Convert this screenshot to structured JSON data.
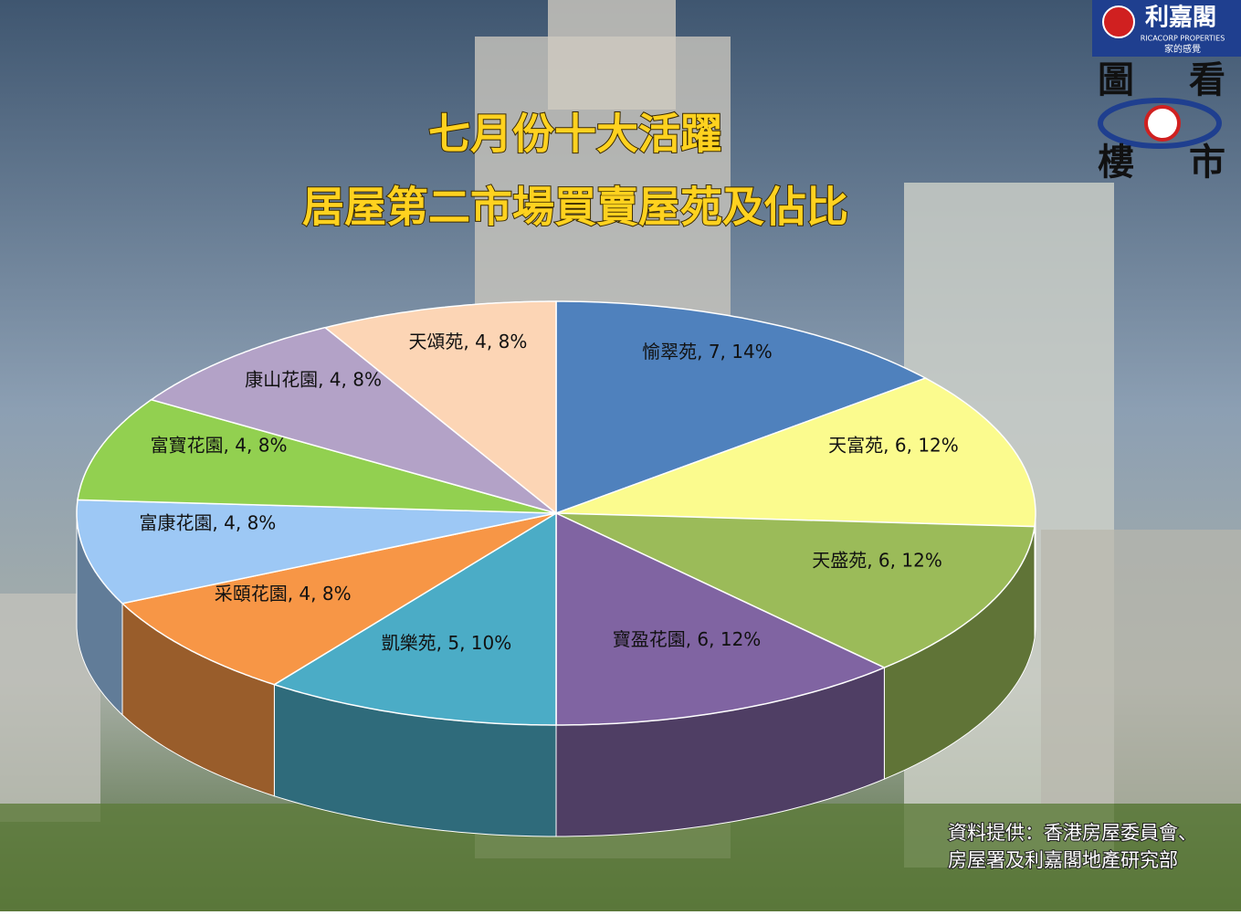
{
  "chart_data": {
    "type": "pie3d",
    "title": [
      "七月份十大活躍",
      "居屋第二市場買賣屋苑及佔比"
    ],
    "values": [
      7,
      6,
      6,
      6,
      5,
      4,
      4,
      4,
      4,
      4
    ],
    "value_labels": [
      "愉翠苑, 7, 14%",
      "天富苑, 6, 12%",
      "天盛苑, 6, 12%",
      "寶盈花園, 6, 12%",
      "凱樂苑, 5, 10%",
      "采頤花園, 4, 8%",
      "富康花園, 4, 8%",
      "富寶花園, 4, 8%",
      "康山花園, 4, 8%",
      "天頌苑, 4, 8%"
    ],
    "colors": [
      "#4f81bd",
      "#fbfb8e",
      "#9bbb59",
      "#8064a2",
      "#4bacc6",
      "#f79646",
      "#9dc8f5",
      "#92d050",
      "#b3a2c7",
      "#fcd5b5"
    ],
    "source": [
      "資料提供：香港房屋委員會、",
      "房屋署及利嘉閣地產研究部"
    ]
  },
  "logo": {
    "name": "利嘉閣",
    "english": "RICACORP PROPERTIES",
    "slogan": "家的感覺",
    "badge": [
      "圖",
      "看",
      "樓",
      "市"
    ]
  }
}
